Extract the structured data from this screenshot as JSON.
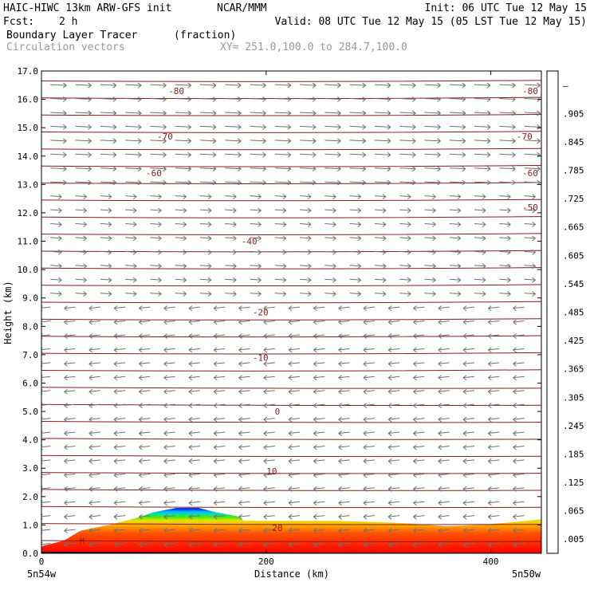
{
  "header": {
    "title": "HAIC-HIWC 13km ARW-GFS init",
    "org": "NCAR/MMM",
    "init": "Init: 06 UTC Tue 12 May 15",
    "fcst_label": "Fcst:",
    "fcst_value": "2 h",
    "valid": "Valid: 08 UTC Tue 12 May 15 (05 LST Tue 12 May 15)",
    "field_name": "Boundary Layer Tracer",
    "field_units": "(fraction)",
    "vector_name": "Circulation vectors",
    "xy_range": "XY= 251.0,100.0 to 284.7,100.0"
  },
  "chart_data": {
    "type": "heatmap",
    "title": "Boundary Layer Tracer",
    "xlabel": "Distance (km)",
    "ylabel": "Height (km)",
    "xlim": [
      0,
      445
    ],
    "ylim": [
      0.0,
      17.0
    ],
    "x_ticks": [
      0,
      200,
      400
    ],
    "y_ticks": [
      0.0,
      1.0,
      2.0,
      3.0,
      4.0,
      5.0,
      6.0,
      7.0,
      8.0,
      9.0,
      10.0,
      11.0,
      12.0,
      13.0,
      14.0,
      15.0,
      16.0,
      17.0
    ],
    "y_tick_labels": [
      "0.0",
      "1.0",
      "2.0",
      "3.0",
      "4.0",
      "5.0",
      "6.0",
      "7.0",
      "8.0",
      "9.0",
      "10.0",
      "11.0",
      "12.0",
      "13.0",
      "14.0",
      "15.0",
      "16.0",
      "17.0"
    ],
    "x_end_labels": [
      "5n54w",
      "5n50w"
    ],
    "colorbar_labels": [
      ".005",
      ".065",
      ".125",
      ".185",
      ".245",
      ".305",
      ".365",
      ".425",
      ".485",
      ".545",
      ".605",
      ".665",
      ".725",
      ".785",
      ".845",
      ".905",
      "–"
    ],
    "colorbar_colors": [
      "#ffffff",
      "#0000ff",
      "#0066ff",
      "#00b2ff",
      "#00e6e6",
      "#00e6a0",
      "#00e650",
      "#4ce600",
      "#a0e600",
      "#e6e600",
      "#ffd200",
      "#ffaa00",
      "#ff8000",
      "#ff5500",
      "#ff2800",
      "#ff0000",
      "#e60000"
    ],
    "temperature_contours": [
      {
        "label": "20",
        "x": 210,
        "y": 0.9
      },
      {
        "label": "10",
        "x": 205,
        "y": 2.9
      },
      {
        "label": "0",
        "x": 210,
        "y": 5.0
      },
      {
        "label": "-10",
        "x": 195,
        "y": 6.9
      },
      {
        "label": "-20",
        "x": 195,
        "y": 8.5
      },
      {
        "label": "-40",
        "x": 185,
        "y": 11.0
      },
      {
        "label": "-50",
        "x": 435,
        "y": 12.2
      },
      {
        "label": "-60",
        "x": 100,
        "y": 13.4
      },
      {
        "label": "-60",
        "x": 435,
        "y": 13.4
      },
      {
        "label": "-70",
        "x": 110,
        "y": 14.7
      },
      {
        "label": "-70",
        "x": 430,
        "y": 14.7
      },
      {
        "label": "-80",
        "x": 120,
        "y": 16.3
      },
      {
        "label": "-80",
        "x": 435,
        "y": 16.3
      }
    ],
    "tracer_top_km": [
      [
        0,
        0.25
      ],
      [
        20,
        0.45
      ],
      [
        35,
        0.8
      ],
      [
        60,
        1.0
      ],
      [
        85,
        1.25
      ],
      [
        100,
        1.45
      ],
      [
        120,
        1.6
      ],
      [
        140,
        1.6
      ],
      [
        155,
        1.45
      ],
      [
        175,
        1.3
      ],
      [
        180,
        1.15
      ],
      [
        200,
        1.15
      ],
      [
        260,
        1.15
      ],
      [
        300,
        1.1
      ],
      [
        330,
        1.05
      ],
      [
        360,
        0.95
      ],
      [
        390,
        1.0
      ],
      [
        420,
        1.1
      ],
      [
        445,
        1.2
      ]
    ],
    "terrain_label": "H"
  }
}
